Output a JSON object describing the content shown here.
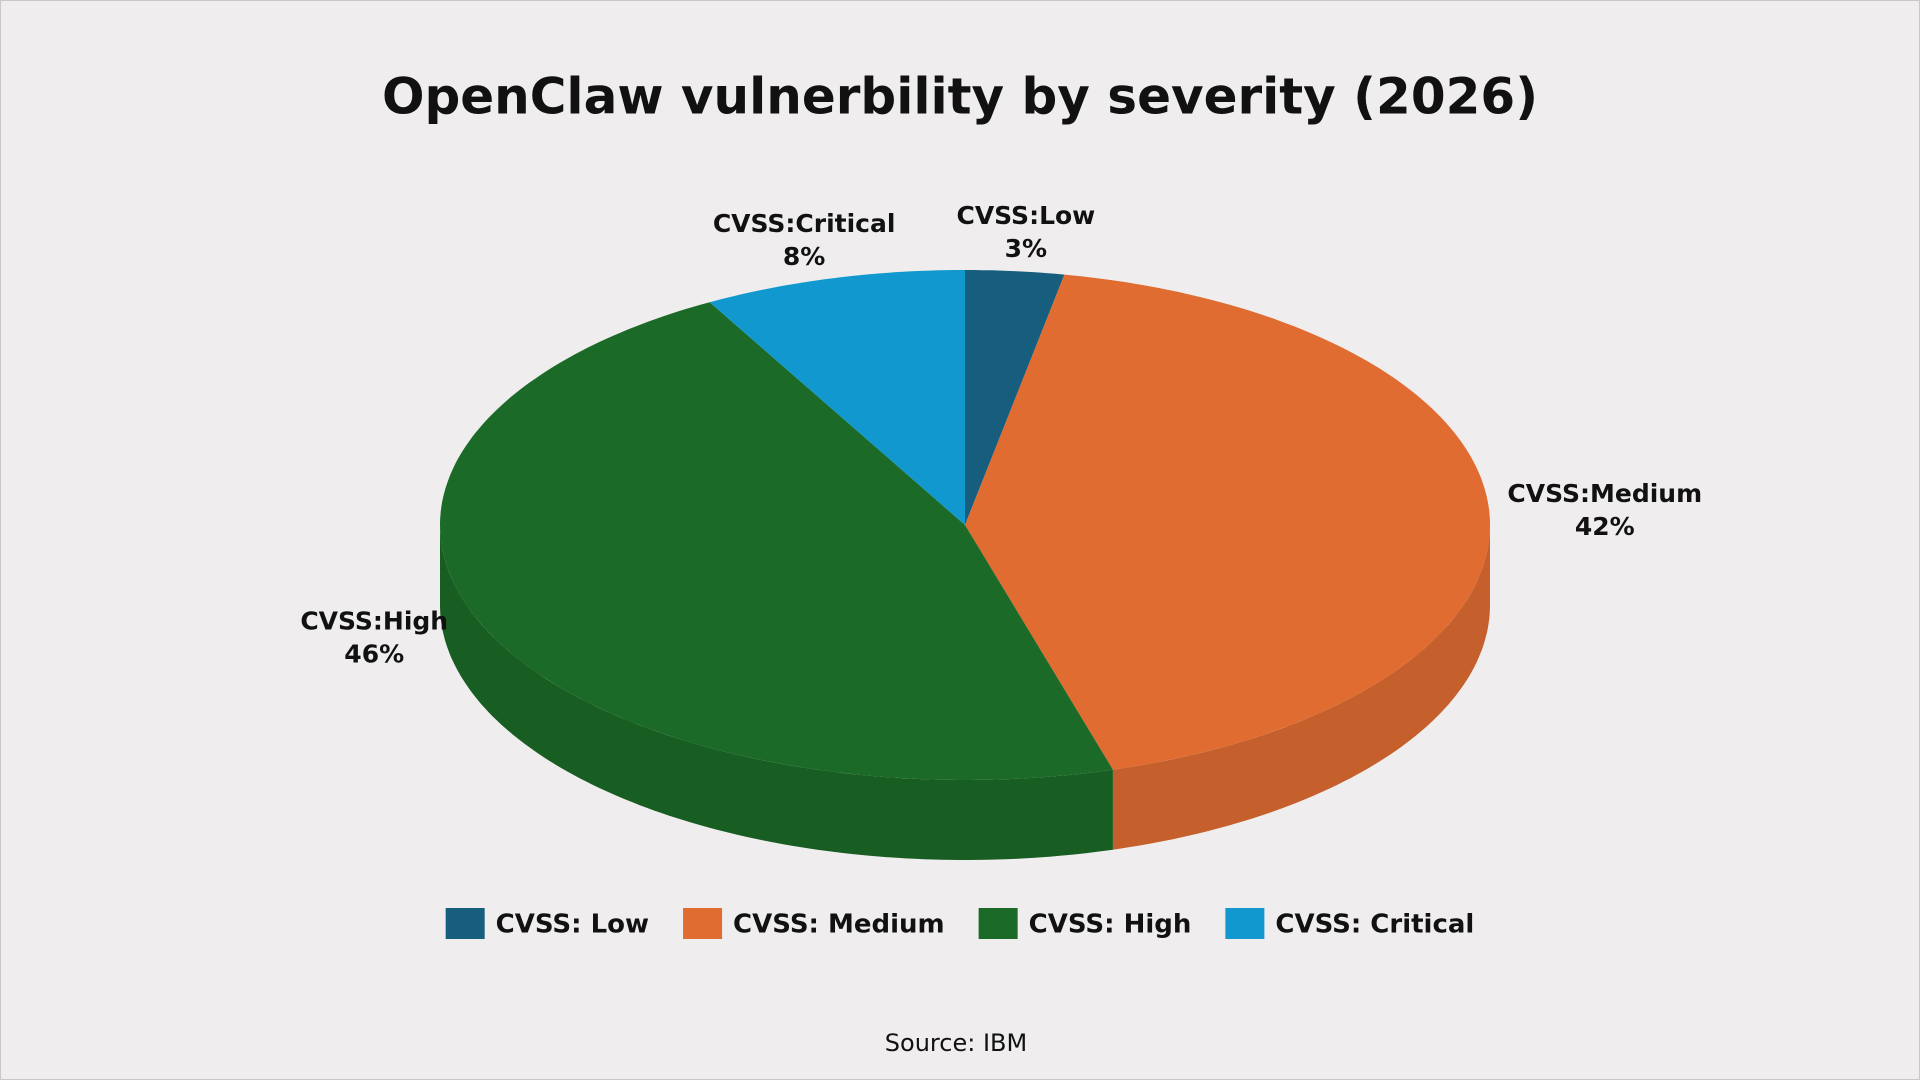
{
  "chart_data": {
    "type": "pie",
    "title": "OpenClaw vulnerbility by severity (2026)",
    "categories": [
      "CVSS: Low",
      "CVSS: Medium",
      "CVSS: High",
      "CVSS: Critical"
    ],
    "label_names": [
      "CVSS:Low",
      "CVSS:Medium",
      "CVSS:High",
      "CVSS:Critical"
    ],
    "values": [
      3,
      42,
      46,
      8
    ],
    "value_labels": [
      "3%",
      "42%",
      "46%",
      "8%"
    ],
    "colors": [
      "#175e7e",
      "#e06c32",
      "#1b6a27",
      "#1199cf"
    ],
    "legend": "bottom",
    "source": "Source: IBM"
  }
}
